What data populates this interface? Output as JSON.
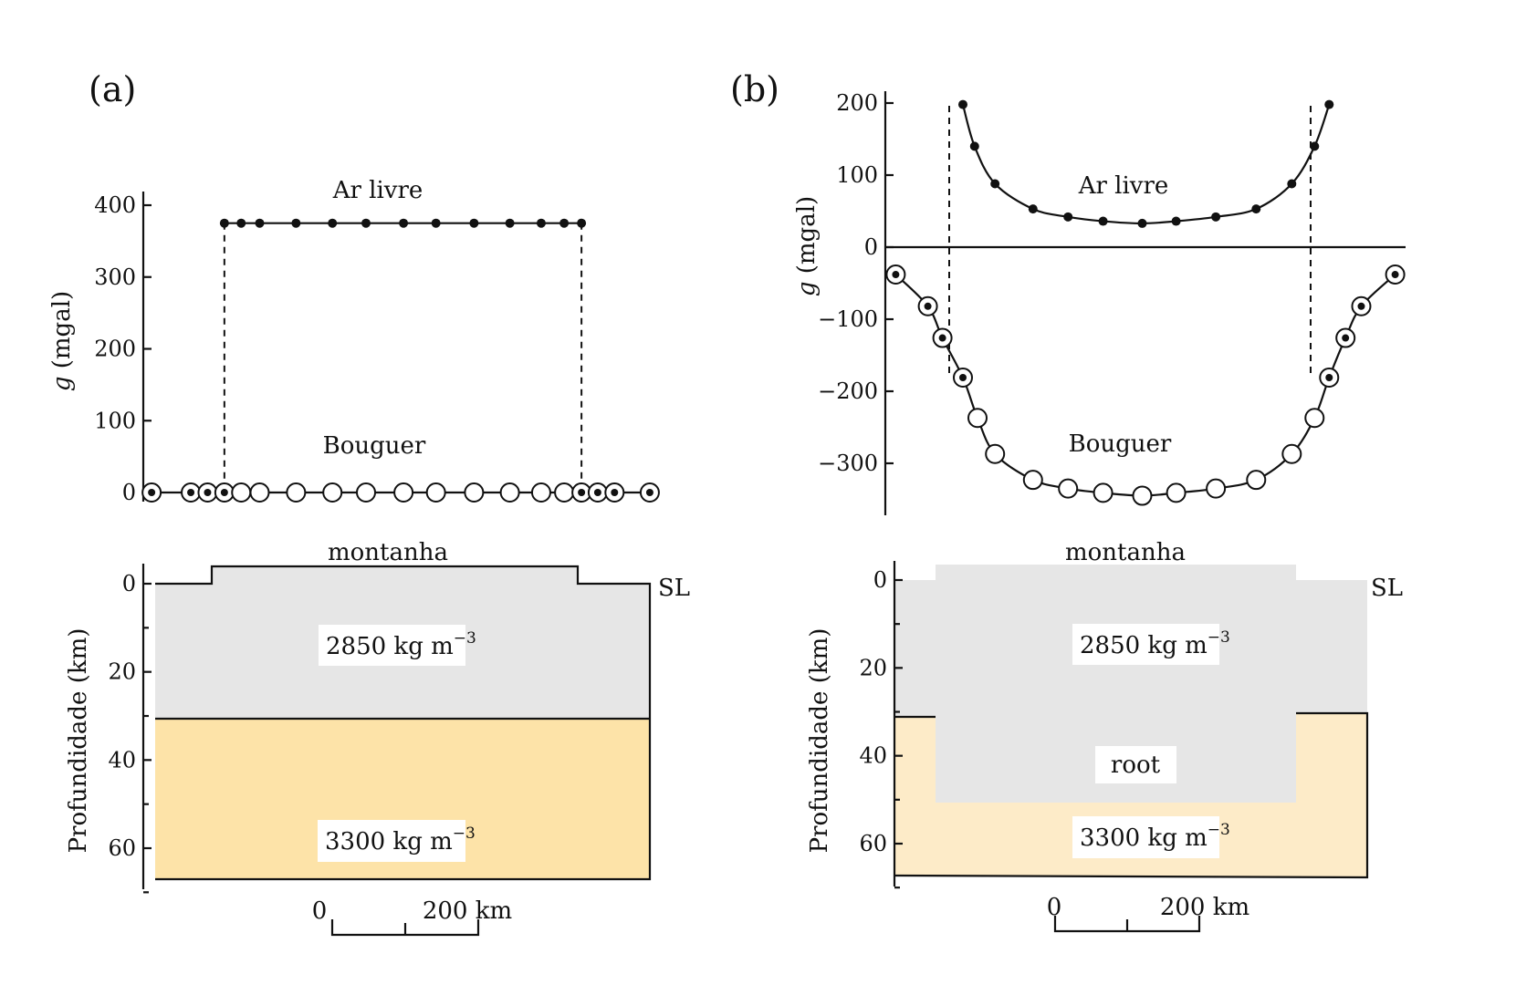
{
  "panel_a": {
    "label": "(a)",
    "freeair_label": "Ar livre",
    "bouguer_label": "Bouguer",
    "g_axis_label": "g (mgal)",
    "g_ticks": [
      "0",
      "100",
      "200",
      "300",
      "400"
    ],
    "depth_axis_label": "Profundidade (km)",
    "depth_ticks": [
      "0",
      "20",
      "40",
      "60"
    ],
    "mountain_label": "montanha",
    "sl_label": "SL",
    "crust_density": "2850 kg m",
    "mantle_density": "3300 kg m",
    "density_exponent": "−3",
    "scale_zero": "0",
    "scale_label": "200 km"
  },
  "panel_b": {
    "label": "(b)",
    "freeair_label": "Ar livre",
    "bouguer_label": "Bouguer",
    "g_axis_label": "g (mgal)",
    "g_ticks": [
      "−300",
      "−200",
      "−100",
      "0",
      "100",
      "200"
    ],
    "depth_axis_label": "Profundidade (km)",
    "depth_ticks": [
      "0",
      "20",
      "40",
      "60"
    ],
    "mountain_label": "montanha",
    "sl_label": "SL",
    "crust_density": "2850 kg m",
    "mantle_density": "3300 kg m",
    "density_exponent": "−3",
    "root_label": "root",
    "scale_zero": "0",
    "scale_label": "200 km"
  },
  "colors": {
    "crust": "#e6e6e6",
    "mantle_a": "#fde3a8",
    "mantle_b": "#fdebc8",
    "ink": "#111111"
  },
  "chart_data": [
    {
      "type": "scatter",
      "panel": "a",
      "series": [
        {
          "name": "Ar livre",
          "x": [
            -250,
            -220,
            -187,
            -122,
            -57,
            3,
            70,
            128,
            196,
            260,
            316,
            357,
            388
          ],
          "y": [
            375,
            375,
            375,
            375,
            375,
            375,
            375,
            375,
            375,
            375,
            375,
            375,
            375
          ]
        },
        {
          "name": "Bouguer",
          "x": [
            -380,
            -310,
            -280,
            -250,
            -220,
            -187,
            -122,
            -57,
            3,
            70,
            128,
            196,
            260,
            316,
            357,
            388,
            417,
            447,
            510
          ],
          "y": [
            0,
            0,
            0,
            0,
            0,
            0,
            0,
            0,
            0,
            0,
            0,
            0,
            0,
            0,
            0,
            0,
            0,
            0,
            0
          ]
        }
      ],
      "xlim": [
        -390,
        515
      ],
      "ylim": [
        0,
        400
      ]
    },
    {
      "type": "scatter",
      "panel": "b",
      "series": [
        {
          "name": "Ar livre",
          "x": [
            -245,
            -225,
            -190,
            -125,
            -65,
            -5,
            62,
            120,
            188,
            257,
            318,
            357,
            382
          ],
          "y": [
            198,
            140,
            88,
            53,
            42,
            36,
            33,
            36,
            42,
            53,
            88,
            140,
            198
          ]
        },
        {
          "name": "Bouguer",
          "x": [
            -360,
            -305,
            -280,
            -245,
            -220,
            -190,
            -125,
            -65,
            -5,
            62,
            120,
            188,
            257,
            318,
            357,
            382,
            410,
            437,
            495
          ],
          "y": [
            -38,
            -82,
            -126,
            -181,
            -237,
            -287,
            -323,
            -335,
            -341,
            -345,
            -341,
            -335,
            -323,
            -287,
            -237,
            -181,
            -126,
            -82,
            -38
          ]
        }
      ],
      "xlim": [
        -370,
        505
      ],
      "ylim": [
        -370,
        210
      ]
    }
  ]
}
